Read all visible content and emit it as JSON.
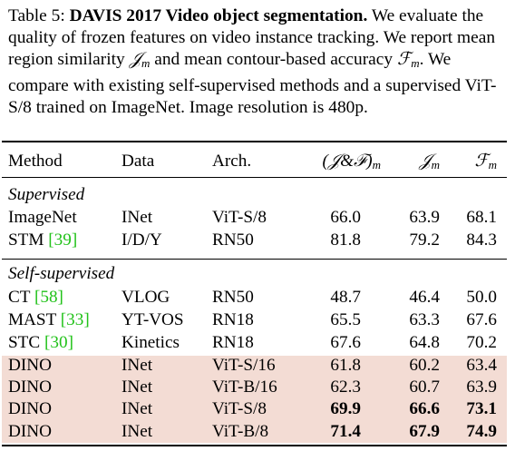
{
  "caption": {
    "label": "Table 5:",
    "title": "DAVIS 2017 Video object segmentation.",
    "text1": "We evaluate the quality of frozen features on video instance tracking. We report mean region similarity",
    "jm": "𝒥",
    "jm_sub": "m",
    "text2": "and mean contour-based accuracy",
    "fm": "ℱ",
    "fm_sub": "m",
    "text3": ". We compare with existing self-supervised methods and a supervised ViT-S/8 trained on ImageNet. Image resolution is 480p."
  },
  "headers": {
    "method": "Method",
    "data": "Data",
    "arch": "Arch.",
    "jf": "(𝒥&ℱ)",
    "jf_sub": "m",
    "j": "𝒥",
    "j_sub": "m",
    "f": "ℱ",
    "f_sub": "m"
  },
  "sections": {
    "supervised": "Supervised",
    "self_supervised": "Self-supervised"
  },
  "rows": [
    {
      "method": "ImageNet",
      "ref": "",
      "data": "INet",
      "arch": "ViT-S/8",
      "jf": "66.0",
      "j": "63.9",
      "f": "68.1"
    },
    {
      "method": "STM",
      "ref": "[39]",
      "data": "I/D/Y",
      "arch": "RN50",
      "jf": "81.8",
      "j": "79.2",
      "f": "84.3"
    },
    {
      "method": "CT",
      "ref": "[58]",
      "data": "VLOG",
      "arch": "RN50",
      "jf": "48.7",
      "j": "46.4",
      "f": "50.0"
    },
    {
      "method": "MAST",
      "ref": "[33]",
      "data": "YT-VOS",
      "arch": "RN18",
      "jf": "65.5",
      "j": "63.3",
      "f": "67.6"
    },
    {
      "method": "STC",
      "ref": "[30]",
      "data": "Kinetics",
      "arch": "RN18",
      "jf": "67.6",
      "j": "64.8",
      "f": "70.2"
    },
    {
      "method": "DINO",
      "ref": "",
      "data": "INet",
      "arch": "ViT-S/16",
      "jf": "61.8",
      "j": "60.2",
      "f": "63.4"
    },
    {
      "method": "DINO",
      "ref": "",
      "data": "INet",
      "arch": "ViT-B/16",
      "jf": "62.3",
      "j": "60.7",
      "f": "63.9"
    },
    {
      "method": "DINO",
      "ref": "",
      "data": "INet",
      "arch": "ViT-S/8",
      "jf": "69.9",
      "j": "66.6",
      "f": "73.1"
    },
    {
      "method": "DINO",
      "ref": "",
      "data": "INet",
      "arch": "ViT-B/8",
      "jf": "71.4",
      "j": "67.9",
      "f": "74.9"
    }
  ],
  "colors": {
    "highlight": "#f3dcd4",
    "citation": "#22c21a"
  }
}
